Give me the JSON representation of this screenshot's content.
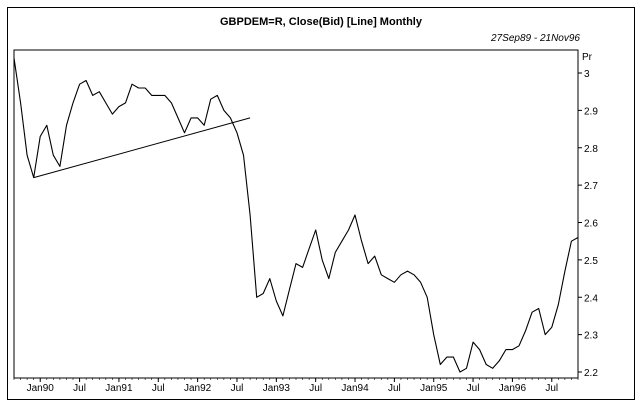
{
  "chart_data": {
    "type": "line",
    "title": "GBPDEM=R, Close(Bid) [Line] Monthly",
    "date_range": "27Sep89 - 21Nov96",
    "ylabel": "Pr",
    "ylim": [
      2.18,
      3.05
    ],
    "y_ticks": [
      3,
      2.9,
      2.8,
      2.7,
      2.6,
      2.5,
      2.4,
      2.3,
      2.2
    ],
    "x_tick_labels": [
      "Jan90",
      "Jul",
      "Jan91",
      "Jul",
      "Jan92",
      "Jul",
      "Jan93",
      "Jul",
      "Jan94",
      "Jul",
      "Jan95",
      "Jul",
      "Jan96",
      "Jul"
    ],
    "x_tick_months": [
      "1990-01",
      "1990-07",
      "1991-01",
      "1991-07",
      "1992-01",
      "1992-07",
      "1993-01",
      "1993-07",
      "1994-01",
      "1994-07",
      "1995-01",
      "1995-07",
      "1996-01",
      "1996-07"
    ],
    "xlim": [
      "1989-09",
      "1996-11"
    ],
    "grid": false,
    "series": [
      {
        "x": [
          "1989-09",
          "1989-10",
          "1989-11",
          "1989-12",
          "1990-01",
          "1990-02",
          "1990-03",
          "1990-04",
          "1990-05",
          "1990-06",
          "1990-07",
          "1990-08",
          "1990-09",
          "1990-10",
          "1990-11",
          "1990-12",
          "1991-01",
          "1991-02",
          "1991-03",
          "1991-04",
          "1991-05",
          "1991-06",
          "1991-07",
          "1991-08",
          "1991-09",
          "1991-10",
          "1991-11",
          "1991-12",
          "1992-01",
          "1992-02",
          "1992-03",
          "1992-04",
          "1992-05",
          "1992-06",
          "1992-07",
          "1992-08",
          "1992-09",
          "1992-10",
          "1992-11",
          "1992-12",
          "1993-01",
          "1993-02",
          "1993-03",
          "1993-04",
          "1993-05",
          "1993-06",
          "1993-07",
          "1993-08",
          "1993-09",
          "1993-10",
          "1993-11",
          "1993-12",
          "1994-01",
          "1994-02",
          "1994-03",
          "1994-04",
          "1994-05",
          "1994-06",
          "1994-07",
          "1994-08",
          "1994-09",
          "1994-10",
          "1994-11",
          "1994-12",
          "1995-01",
          "1995-02",
          "1995-03",
          "1995-04",
          "1995-05",
          "1995-06",
          "1995-07",
          "1995-08",
          "1995-09",
          "1995-10",
          "1995-11",
          "1995-12",
          "1996-01",
          "1996-02",
          "1996-03",
          "1996-04",
          "1996-05",
          "1996-06",
          "1996-07",
          "1996-08",
          "1996-09",
          "1996-10",
          "1996-11"
        ],
        "values": [
          3.04,
          2.92,
          2.78,
          2.72,
          2.83,
          2.86,
          2.78,
          2.75,
          2.86,
          2.92,
          2.97,
          2.98,
          2.94,
          2.95,
          2.92,
          2.89,
          2.91,
          2.92,
          2.97,
          2.96,
          2.96,
          2.94,
          2.94,
          2.94,
          2.92,
          2.88,
          2.84,
          2.88,
          2.88,
          2.86,
          2.93,
          2.94,
          2.9,
          2.88,
          2.84,
          2.78,
          2.62,
          2.4,
          2.41,
          2.45,
          2.39,
          2.35,
          2.42,
          2.49,
          2.48,
          2.53,
          2.58,
          2.5,
          2.45,
          2.52,
          2.55,
          2.58,
          2.62,
          2.55,
          2.49,
          2.51,
          2.46,
          2.45,
          2.44,
          2.46,
          2.47,
          2.46,
          2.44,
          2.4,
          2.3,
          2.22,
          2.24,
          2.24,
          2.2,
          2.21,
          2.28,
          2.26,
          2.22,
          2.21,
          2.23,
          2.26,
          2.26,
          2.27,
          2.31,
          2.36,
          2.37,
          2.3,
          2.32,
          2.38,
          2.47,
          2.55,
          2.56
        ]
      }
    ],
    "trendline": {
      "x": [
        "1989-12",
        "1992-09"
      ],
      "values": [
        2.72,
        2.88
      ]
    }
  }
}
